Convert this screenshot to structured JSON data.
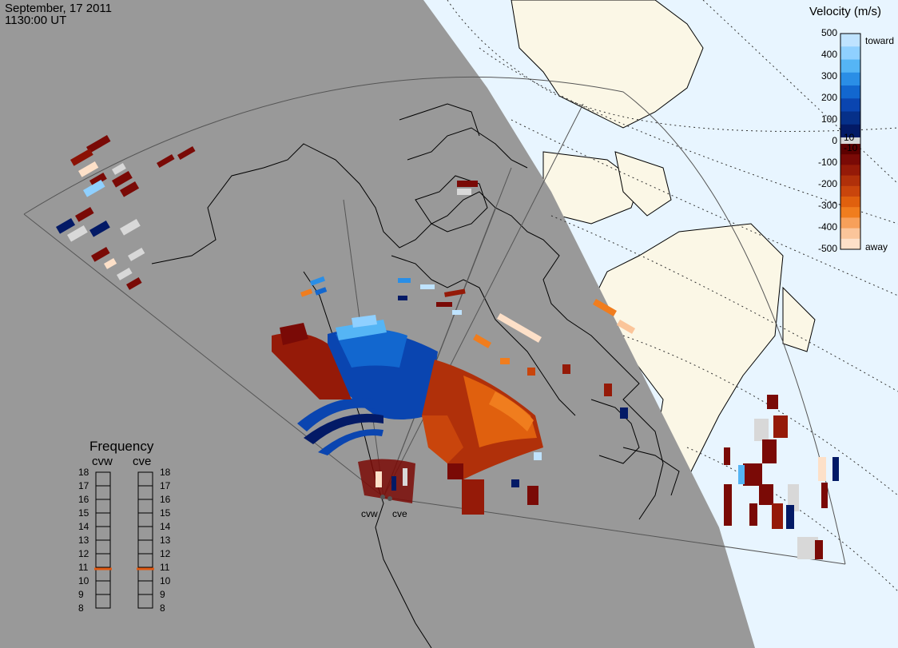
{
  "header": {
    "date": "September, 17 2011",
    "time": "1130:00 UT"
  },
  "colorbar": {
    "title": "Velocity (m/s)",
    "ticks": [
      "500",
      "400",
      "300",
      "200",
      "100",
      "10",
      "0",
      "-10",
      "-100",
      "-200",
      "-300",
      "-400",
      "-500"
    ],
    "toward_label": "toward",
    "away_label": "away",
    "colors_toward": [
      "#bfe3ff",
      "#8fd0ff",
      "#55b5f5",
      "#2a8ee6",
      "#1267cf",
      "#0a45b0",
      "#063089",
      "#031a66"
    ],
    "colors_away": [
      "#5c0000",
      "#7a0a06",
      "#951a08",
      "#b0300a",
      "#c9450c",
      "#e0600e",
      "#f07d1e",
      "#f7a05a",
      "#fbc59a",
      "#fde0c8"
    ],
    "zero_color": "#d8d8d8"
  },
  "frequency_panel": {
    "title": "Frequency",
    "radars": [
      {
        "label": "cvw",
        "value_mhz": 11
      },
      {
        "label": "cve",
        "value_mhz": 11
      }
    ],
    "scale": [
      "18",
      "17",
      "16",
      "15",
      "14",
      "13",
      "12",
      "11",
      "10",
      "9",
      "8"
    ],
    "indicator_color": "#e05a14"
  },
  "radar_sites": [
    {
      "label": "cvw"
    },
    {
      "label": "cve"
    }
  ],
  "map": {
    "night_color": "#999999",
    "ocean_day_color": "#e8f5ff",
    "land_day_color": "#fbf7e6",
    "icons": [
      "radar-site-marker"
    ]
  }
}
